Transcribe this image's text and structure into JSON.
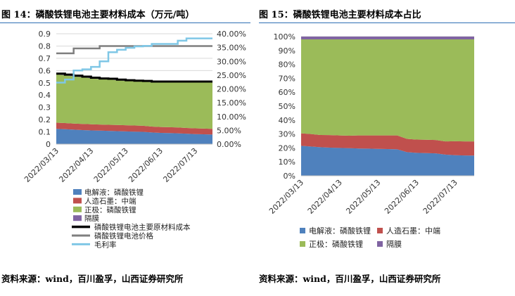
{
  "figure14": {
    "title": "图 14：磷酸铁锂电池主要材料成本（万元/吨）",
    "source": "资料来源：wind，百川盈孚，山西证券研究所"
  },
  "figure15": {
    "title": "图 15：磷酸铁锂电池主要材料成本占比",
    "source": "资料来源：wind，百川盈孚，山西证券研究所"
  },
  "chart_data": [
    {
      "type": "area",
      "stacked": true,
      "x": [
        "2022/03/13",
        "2022/03/20",
        "2022/03/27",
        "2022/04/03",
        "2022/04/13",
        "2022/04/20",
        "2022/04/27",
        "2022/05/03",
        "2022/05/13",
        "2022/05/20",
        "2022/05/27",
        "2022/06/03",
        "2022/06/13",
        "2022/06/20",
        "2022/06/27",
        "2022/07/03",
        "2022/07/13",
        "2022/07/20",
        "2022/07/27"
      ],
      "xticks": [
        "2022/03/13",
        "2022/04/13",
        "2022/05/13",
        "2022/06/13",
        "2022/07/13"
      ],
      "ylim": [
        0,
        0.9
      ],
      "yticks": [
        "0",
        "0.1",
        "0.2",
        "0.3",
        "0.4",
        "0.5",
        "0.6",
        "0.7",
        "0.8",
        "0.9"
      ],
      "y2lim": [
        0,
        40
      ],
      "y2ticks": [
        "0.00%",
        "5.00%",
        "10.00%",
        "15.00%",
        "20.00%",
        "25.00%",
        "30.00%",
        "35.00%",
        "40.00%"
      ],
      "grid": true,
      "legend_position": "bottom",
      "series": [
        {
          "name": "电解液：磷酸铁锂",
          "kind": "area",
          "color": "#4f81bd",
          "values": [
            0.125,
            0.122,
            0.118,
            0.115,
            0.112,
            0.11,
            0.108,
            0.106,
            0.104,
            0.102,
            0.1,
            0.095,
            0.092,
            0.09,
            0.088,
            0.085,
            0.082,
            0.08,
            0.078
          ]
        },
        {
          "name": "人造石墨：中端",
          "kind": "area",
          "color": "#c0504d",
          "values": [
            0.05,
            0.05,
            0.05,
            0.05,
            0.05,
            0.05,
            0.05,
            0.05,
            0.05,
            0.05,
            0.05,
            0.048,
            0.048,
            0.048,
            0.048,
            0.047,
            0.047,
            0.047,
            0.047
          ]
        },
        {
          "name": "正极：磷酸铁锂",
          "kind": "area",
          "color": "#9bbb59",
          "values": [
            0.395,
            0.39,
            0.385,
            0.38,
            0.375,
            0.37,
            0.37,
            0.365,
            0.362,
            0.36,
            0.36,
            0.362,
            0.365,
            0.367,
            0.369,
            0.373,
            0.376,
            0.378,
            0.38
          ]
        },
        {
          "name": "隔膜",
          "kind": "area",
          "color": "#8064a2",
          "values": [
            0.005,
            0.005,
            0.005,
            0.005,
            0.005,
            0.005,
            0.005,
            0.005,
            0.005,
            0.005,
            0.005,
            0.005,
            0.005,
            0.005,
            0.005,
            0.005,
            0.005,
            0.005,
            0.005
          ]
        },
        {
          "name": "磷酸铁锂电池主要原材料成本",
          "kind": "line",
          "color": "#000000",
          "values": [
            0.575,
            0.567,
            0.558,
            0.55,
            0.542,
            0.535,
            0.533,
            0.526,
            0.521,
            0.517,
            0.515,
            0.51,
            0.51,
            0.51,
            0.51,
            0.51,
            0.51,
            0.51,
            0.51
          ]
        },
        {
          "name": "磷酸铁锂电池价格",
          "kind": "line",
          "color": "#7f7f7f",
          "values": [
            0.74,
            0.74,
            0.78,
            0.78,
            0.78,
            0.8,
            0.8,
            0.8,
            0.8,
            0.8,
            0.8,
            0.8,
            0.8,
            0.8,
            0.8,
            0.8,
            0.8,
            0.8,
            0.8
          ]
        },
        {
          "name": "毛利率",
          "kind": "line",
          "axis": "right",
          "color": "#7fc7e6",
          "values": [
            22.3,
            23.4,
            26.7,
            27.1,
            28.0,
            30.0,
            33.3,
            34.2,
            34.9,
            35.4,
            35.6,
            36.3,
            36.3,
            36.3,
            37.5,
            38.3,
            38.3,
            38.3,
            38.3
          ]
        }
      ]
    },
    {
      "type": "area",
      "stacked": true,
      "percent": true,
      "x": [
        "2022/03/13",
        "2022/03/20",
        "2022/03/27",
        "2022/04/03",
        "2022/04/13",
        "2022/04/20",
        "2022/04/27",
        "2022/05/03",
        "2022/05/13",
        "2022/05/20",
        "2022/05/27",
        "2022/06/03",
        "2022/06/13",
        "2022/06/20",
        "2022/06/27",
        "2022/07/03",
        "2022/07/13",
        "2022/07/20",
        "2022/07/27"
      ],
      "xticks": [
        "2022/03/13",
        "2022/04/13",
        "2022/05/13",
        "2022/06/13",
        "2022/07/13"
      ],
      "ylim": [
        0,
        100
      ],
      "yticks": [
        "0%",
        "10%",
        "20%",
        "30%",
        "40%",
        "50%",
        "60%",
        "70%",
        "80%",
        "90%",
        "100%"
      ],
      "grid": true,
      "legend_position": "bottom",
      "series": [
        {
          "name": "电解液：磷酸铁锂",
          "color": "#4f81bd",
          "values": [
            21.5,
            21,
            20.5,
            20.2,
            20,
            19.8,
            19.6,
            19.5,
            19.3,
            19.2,
            19,
            17,
            16.5,
            16.3,
            16.1,
            15.2,
            14.8,
            14.6,
            14.5
          ]
        },
        {
          "name": "人造石墨：中端",
          "color": "#c0504d",
          "values": [
            9,
            9,
            8.8,
            9,
            9,
            9,
            9.4,
            9.5,
            9.7,
            9.8,
            10,
            9.5,
            9.5,
            9.6,
            9.6,
            9.5,
            10,
            10.1,
            10.2
          ]
        },
        {
          "name": "正极：磷酸铁锂",
          "color": "#9bbb59",
          "values": [
            67.5,
            68,
            68.7,
            68.8,
            69,
            69.2,
            69,
            69,
            69,
            69,
            69,
            71.5,
            72,
            72.1,
            72.3,
            73.3,
            73.2,
            73.3,
            73.3
          ]
        },
        {
          "name": "隔膜",
          "color": "#8064a2",
          "values": [
            2,
            2,
            2,
            2,
            2,
            2,
            2,
            2,
            2,
            2,
            2,
            2,
            2,
            2,
            2,
            2,
            2,
            2,
            2
          ]
        }
      ]
    }
  ]
}
